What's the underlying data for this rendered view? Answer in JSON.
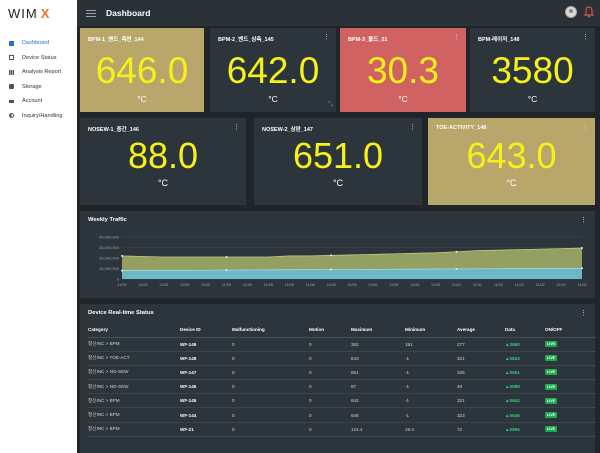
{
  "app": {
    "logo_main": "WIM",
    "logo_accent": "X"
  },
  "header": {
    "title": "Dashboard"
  },
  "sidebar": {
    "items": [
      {
        "label": "Dashboard",
        "icon": "grid-icon",
        "active": true
      },
      {
        "label": "Device Status",
        "icon": "document-icon"
      },
      {
        "label": "Analysis Report",
        "icon": "bar-chart-icon"
      },
      {
        "label": "Storage",
        "icon": "database-icon"
      },
      {
        "label": "Account",
        "icon": "account-icon"
      },
      {
        "label": "Inquiry/Handling",
        "icon": "contrast-icon"
      }
    ]
  },
  "cards": [
    {
      "name": "BPM-1_밴드_측면_144",
      "value": "646.0",
      "unit": "°C",
      "color": "#b8a66a"
    },
    {
      "name": "BPM-2_밴드_상측_145",
      "value": "642.0",
      "unit": "°C",
      "color": "#2c353b"
    },
    {
      "name": "BPM-3_몰드_21",
      "value": "30.3",
      "unit": "°C",
      "color": "#d16262"
    },
    {
      "name": "BPM-레이저_148",
      "value": "3580",
      "unit": "°C",
      "color": "#2c353b"
    },
    {
      "name": "NOSEW-1_중간_146",
      "value": "88.0",
      "unit": "°C",
      "color": "#2c353b"
    },
    {
      "name": "NOSEW-2_상판_147",
      "value": "651.0",
      "unit": "°C",
      "color": "#2c353b"
    },
    {
      "name": "TOE-ACTIVITY_148",
      "value": "643.0",
      "unit": "°C",
      "color": "#b8a66a"
    }
  ],
  "traffic": {
    "title": "Weekly Traffic",
    "chart_data": {
      "type": "area",
      "x": [
        "11/05",
        "11/05",
        "11/05",
        "11/05",
        "11/05",
        "11/05",
        "11/05",
        "11/05",
        "11/06",
        "11/06",
        "11/06",
        "11/06",
        "11/06",
        "11/06",
        "11/06",
        "11/06",
        "11/01",
        "11/01",
        "11/01",
        "11/02",
        "11/02",
        "11/02",
        "11/02"
      ],
      "yticks": [
        "40,000,000",
        "30,000,000",
        "20,000,000",
        "10,000,000",
        "0"
      ],
      "ylim": [
        0,
        40000000
      ],
      "series": [
        {
          "values": [
            22000000,
            21500000,
            21000000,
            21000000,
            21000000,
            21000000,
            21000000,
            21000000,
            22000000,
            22000000,
            22500000,
            23000000,
            23500000,
            24000000,
            24500000,
            25000000,
            26000000,
            27000000,
            27500000,
            28000000,
            28500000,
            29000000,
            29500000
          ],
          "color": "#9aa564"
        },
        {
          "values": [
            8000000,
            8000000,
            8200000,
            8300000,
            8400000,
            8500000,
            8600000,
            8700000,
            8800000,
            8900000,
            9000000,
            9100000,
            9200000,
            9300000,
            9400000,
            9500000,
            9600000,
            9700000,
            9800000,
            9900000,
            10000000,
            10100000,
            10200000
          ],
          "color": "#6ab8cf"
        }
      ],
      "grid": true
    }
  },
  "realtime": {
    "title": "Device Real-time Status",
    "columns": [
      "Category",
      "Device ID",
      "Malfunctioning",
      "Motion",
      "Maximum",
      "Minimum",
      "Average",
      "Data",
      "ON/OFF"
    ],
    "rows": [
      [
        "청신INC > BPM",
        "WF-149",
        "0",
        "0",
        "362",
        "191",
        "277",
        "▲3580",
        "LIVE"
      ],
      [
        "청신INC > TOE-ACT",
        "WF-148",
        "0",
        "0",
        "643",
        "-1",
        "321",
        "▲0643",
        "LIVE"
      ],
      [
        "청신INC > NO-SEW",
        "WF-147",
        "0",
        "0",
        "651",
        "-1",
        "325",
        "▲0651",
        "LIVE"
      ],
      [
        "청신INC > NO-SEW",
        "WF-146",
        "0",
        "0",
        "97",
        "-1",
        "48",
        "▲0088",
        "LIVE"
      ],
      [
        "청신INC > BPM",
        "WF-145",
        "0",
        "0",
        "642",
        "-1",
        "321",
        "▲0642",
        "LIVE"
      ],
      [
        "청신INC > BPM",
        "WF-144",
        "0",
        "0",
        "646",
        "-1",
        "323",
        "▲0646",
        "LIVE"
      ],
      [
        "청신INC > BPM",
        "WF-21",
        "0",
        "0",
        "124.4",
        "19.4",
        "72",
        "▲0995",
        "LIVE"
      ]
    ]
  }
}
